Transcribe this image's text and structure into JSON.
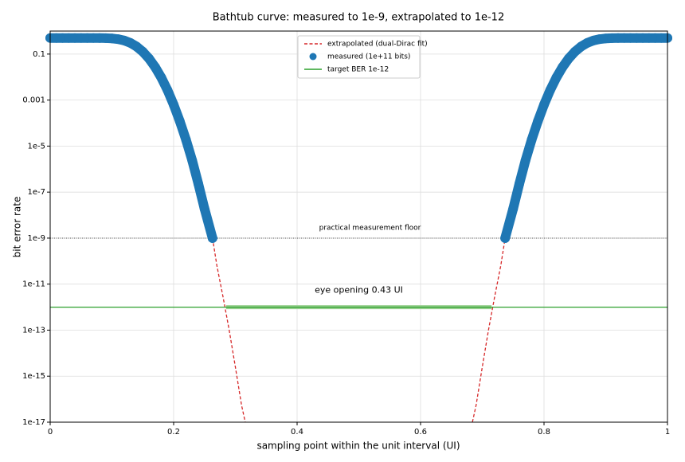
{
  "chart_data": {
    "type": "line",
    "title": "Bathtub curve: measured to 1e-9, extrapolated to 1e-12",
    "x_label": "sampling point within the unit interval (UI)",
    "y_label": "bit error rate",
    "log_y": true,
    "grid": true,
    "legend": "upper center",
    "xlim": [
      0,
      1
    ],
    "xticks": [
      0,
      0.2,
      0.4,
      0.6,
      0.8,
      1
    ],
    "ylim": [
      1e-17,
      1
    ],
    "yticks": [
      0.1,
      0.001,
      {
        "value": 1e-05,
        "label": "1e-5"
      },
      {
        "value": 1e-07,
        "label": "1e-7"
      },
      {
        "value": 1e-09,
        "label": "1e-9"
      },
      {
        "value": 1e-11,
        "label": "1e-11"
      },
      {
        "value": 1e-13,
        "label": "1e-13"
      },
      {
        "value": 1e-15,
        "label": "1e-15"
      },
      {
        "value": 1e-17,
        "label": "1e-17"
      }
    ],
    "series": [
      {
        "name": "extrapolated (dual-Dirac fit)",
        "type": "line",
        "dash": true,
        "color": "#d62728",
        "x": [
          0.263,
          0.27,
          0.28,
          0.29,
          0.3,
          0.31,
          0.316,
          null,
          0.684,
          0.69,
          0.7,
          0.71,
          0.72,
          0.73,
          0.737
        ],
        "values": [
          1e-09,
          6.5e-11,
          2.8e-12,
          1e-13,
          2.5e-15,
          5.5e-17,
          1e-17,
          null,
          1e-17,
          5.5e-17,
          2.5e-15,
          1e-13,
          2.8e-12,
          6.5e-11,
          1e-09
        ]
      },
      {
        "name": "measured (1e+11 bits)",
        "type": "scatter",
        "color": "#1f77b4",
        "x": [
          0,
          0.01,
          0.02,
          0.03,
          0.04,
          0.05,
          0.06,
          0.07,
          0.08,
          0.09,
          0.1,
          0.11,
          0.12,
          0.13,
          0.14,
          0.15,
          0.16,
          0.17,
          0.18,
          0.19,
          0.2,
          0.21,
          0.22,
          0.23,
          0.24,
          0.25,
          0.263,
          null,
          0.737,
          0.75,
          0.76,
          0.77,
          0.78,
          0.79,
          0.8,
          0.81,
          0.82,
          0.83,
          0.84,
          0.85,
          0.86,
          0.87,
          0.88,
          0.89,
          0.9,
          0.91,
          0.92,
          0.93,
          0.94,
          0.95,
          0.96,
          0.97,
          0.98,
          0.99,
          1.0
        ],
        "values": [
          0.5,
          0.5,
          0.5,
          0.5,
          0.5,
          0.5,
          0.5,
          0.5,
          0.498,
          0.492,
          0.478,
          0.445,
          0.387,
          0.306,
          0.212,
          0.127,
          0.0644,
          0.0272,
          0.0095,
          0.00272,
          0.00063,
          0.00012,
          1.9e-05,
          2.4e-06,
          2.3e-07,
          1.9e-08,
          1e-09,
          null,
          1e-09,
          1.9e-08,
          2.3e-07,
          2.4e-06,
          1.9e-05,
          0.00012,
          0.00063,
          0.00272,
          0.0095,
          0.0272,
          0.0644,
          0.127,
          0.212,
          0.306,
          0.387,
          0.445,
          0.478,
          0.492,
          0.498,
          0.5,
          0.5,
          0.5,
          0.5,
          0.5,
          0.5,
          0.5,
          0.5
        ]
      },
      {
        "name": "target BER 1e-12",
        "type": "hline",
        "color": "#2ca02c",
        "value": 1e-12
      }
    ],
    "floor": {
      "value": 1e-09,
      "label": "practical measurement floor",
      "color": "#555555"
    },
    "eye_opening": {
      "x": [
        0.285,
        0.715
      ],
      "value": 1e-12,
      "label": "eye opening 0.43 UI",
      "color": "#98d08f",
      "text_color": "#2ca02c"
    }
  }
}
